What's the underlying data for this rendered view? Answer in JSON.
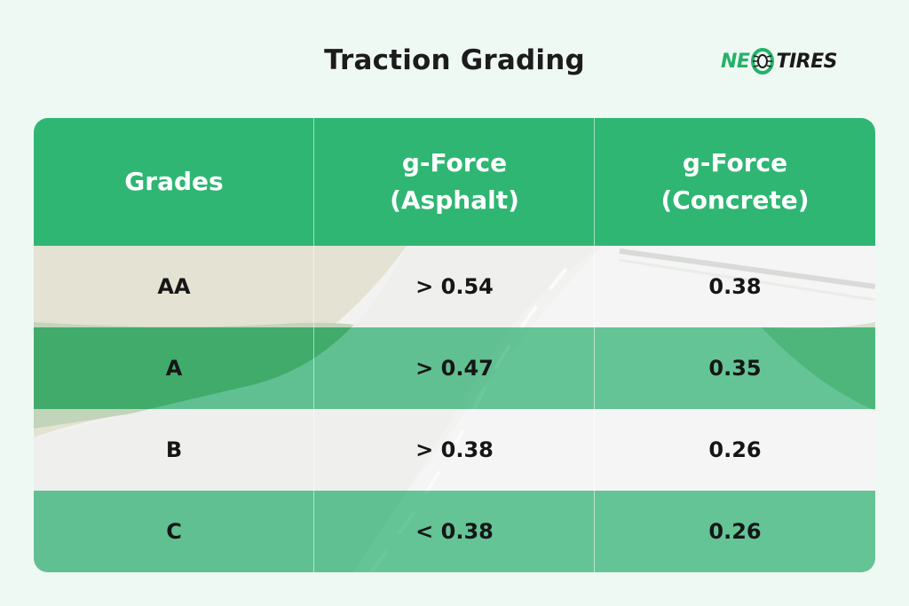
{
  "title": "Traction Grading",
  "logo": {
    "part1": "NE",
    "part2": "TIRES",
    "icon": "tire-icon"
  },
  "table": {
    "headers": [
      {
        "line1": "Grades",
        "line2": ""
      },
      {
        "line1": "g-Force",
        "line2": "(Asphalt)"
      },
      {
        "line1": "g-Force",
        "line2": "(Concrete)"
      }
    ],
    "rows": [
      {
        "grade": "AA",
        "asphalt": "> 0.54",
        "concrete": "0.38"
      },
      {
        "grade": "A",
        "asphalt": "> 0.47",
        "concrete": "0.35"
      },
      {
        "grade": "B",
        "asphalt": "> 0.38",
        "concrete": "0.26"
      },
      {
        "grade": "C",
        "asphalt": "< 0.38",
        "concrete": "0.26"
      }
    ]
  },
  "colors": {
    "accent": "#2fb673",
    "background": "#eff9f3",
    "text": "#161616"
  }
}
